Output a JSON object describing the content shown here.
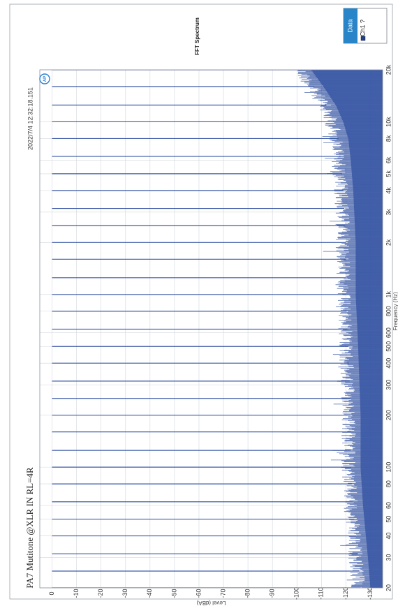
{
  "chart_data": {
    "type": "line",
    "title": "FFT Spectrum",
    "subtitle": "PA7 Mutitone @XLR IN  RL=4R",
    "timestamp": "2022/7/4 12:32:18.151",
    "ylabel": "Level (dBA)",
    "xlabel": "Frequency (Hz)",
    "x_scale": "log",
    "xlim": [
      20,
      20000
    ],
    "ylim": [
      -135,
      5
    ],
    "grid": true,
    "x_ticks": [
      20,
      30,
      40,
      50,
      60,
      80,
      100,
      200,
      300,
      400,
      500,
      600,
      800,
      1000,
      2000,
      3000,
      4000,
      5000,
      6000,
      8000,
      10000,
      20000
    ],
    "x_tick_labels": [
      "20",
      "30",
      "40",
      "50",
      "60",
      "80",
      "100",
      "200",
      "300",
      "400",
      "500",
      "600",
      "800",
      "1k",
      "2k",
      "3k",
      "4k",
      "5k",
      "6k",
      "8k",
      "10k",
      "20k"
    ],
    "y_ticks": [
      0,
      -10,
      -20,
      -30,
      -40,
      -50,
      -60,
      -70,
      -80,
      -90,
      -100,
      -110,
      -120,
      -130
    ],
    "y_tick_labels": [
      "0",
      "-10",
      "-20",
      "-30",
      "-40",
      "-50",
      "-60",
      "-70",
      "-80",
      "-90",
      "-100",
      "-110",
      "-120",
      "-130"
    ],
    "legend": {
      "title": "Data",
      "position": "top-right",
      "entries": [
        {
          "label": "Ch1 ?",
          "color": "#1f3f8a"
        }
      ]
    },
    "series": [
      {
        "name": "Ch1 ?",
        "color": "#3c5aa6",
        "tones_hz": [
          20,
          25,
          31.5,
          40,
          50,
          63,
          80,
          100,
          125,
          160,
          200,
          250,
          315,
          400,
          500,
          630,
          800,
          1000,
          1250,
          1600,
          2000,
          2500,
          3150,
          4000,
          5000,
          6300,
          8000,
          10000,
          12500,
          16000,
          20000
        ],
        "tone_level_db": 0,
        "noise_floor": {
          "freq_hz": [
            20,
            30,
            60,
            100,
            200,
            500,
            1000,
            2000,
            4000,
            6000,
            8000,
            10000,
            12500,
            16000,
            20000
          ],
          "level_db": [
            -126,
            -125,
            -123,
            -122,
            -122,
            -121,
            -120,
            -120,
            -119,
            -118,
            -117,
            -115,
            -112,
            -107,
            -102
          ]
        }
      }
    ]
  },
  "colors": {
    "trace": "#3c5aa6",
    "grid": "#d2d6de",
    "legend_header": "#2a85c8",
    "legend_swatch": "#1f3f8a",
    "logo": "#2a7fd4"
  },
  "icons": {
    "logo": "ap-logo-icon"
  }
}
